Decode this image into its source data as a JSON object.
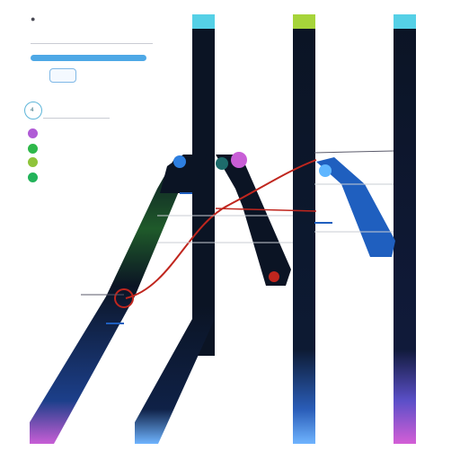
{
  "header": {
    "title_text": "",
    "subtitle_text": ""
  },
  "search": {
    "value": "",
    "accent": "#4ea8e6"
  },
  "chip": {
    "label": ""
  },
  "step": {
    "label": "4"
  },
  "legend": {
    "items": [
      {
        "color": "#b05bd6",
        "label": "",
        "icon": "circle-icon"
      },
      {
        "color": "#2eb84a",
        "label": "",
        "icon": "circle-icon"
      },
      {
        "color": "#8fc43a",
        "label": "",
        "icon": "circle-icon"
      },
      {
        "color": "#22b35a",
        "label": "",
        "icon": "circle-icon"
      }
    ]
  },
  "annotations": {
    "top_right": "",
    "left_mid": "",
    "center_left": "",
    "lower_left_a": "",
    "lower_left_b": "",
    "center_low": ""
  },
  "colors": {
    "track": "#0b1424",
    "cap_cyan": "#55d0e6",
    "cap_green": "#a6d43a",
    "connector": "#c0261e",
    "blue": "#1f5fbf",
    "magenta": "#c85ed6",
    "light_blue": "#5fb6ff"
  }
}
